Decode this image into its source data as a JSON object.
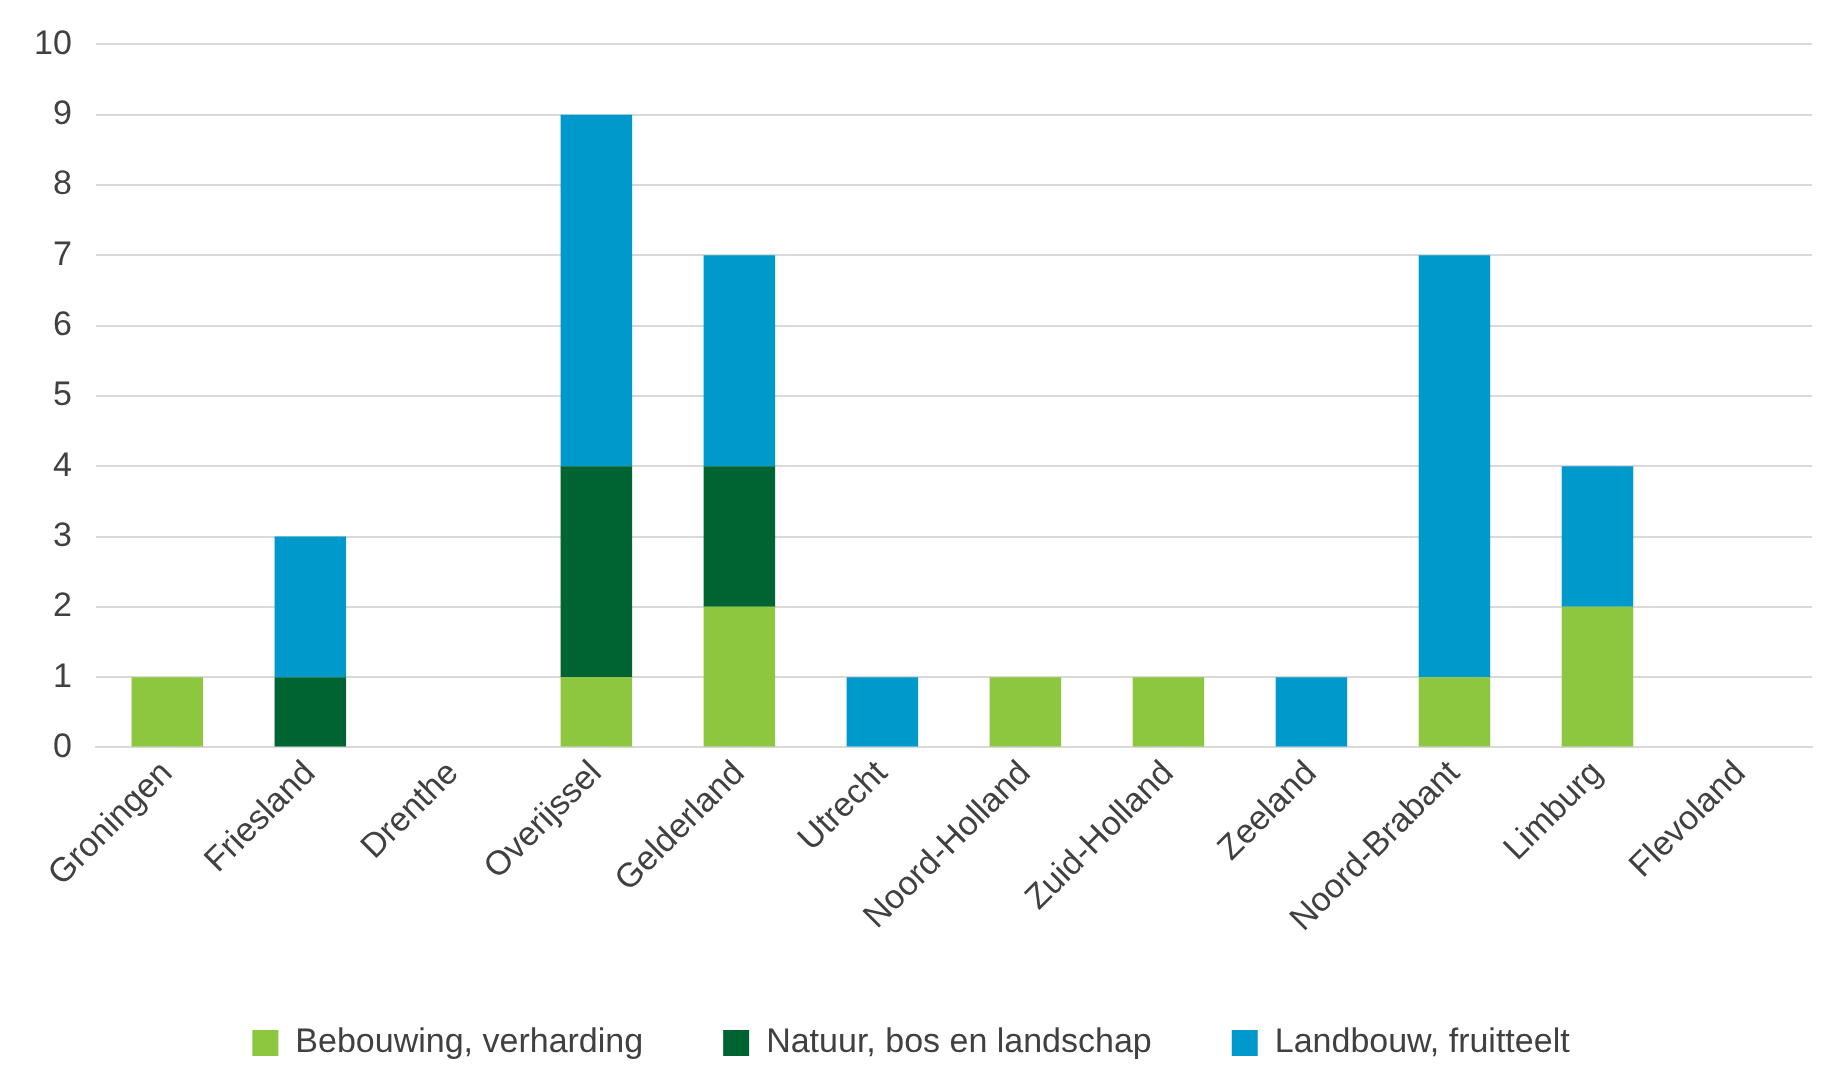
{
  "chart_data": {
    "type": "bar",
    "stacked": true,
    "categories": [
      "Groningen",
      "Friesland",
      "Drenthe",
      "Overijssel",
      "Gelderland",
      "Utrecht",
      "Noord-Holland",
      "Zuid-Holland",
      "Zeeland",
      "Noord-Brabant",
      "Limburg",
      "Flevoland"
    ],
    "series": [
      {
        "name": "Bebouwing, verharding",
        "color": "#8dc63f",
        "values": [
          1,
          0,
          0,
          1,
          2,
          0,
          1,
          1,
          0,
          1,
          2,
          0
        ]
      },
      {
        "name": "Natuur, bos en landschap",
        "color": "#006432",
        "values": [
          0,
          1,
          0,
          3,
          2,
          0,
          0,
          0,
          0,
          0,
          0,
          0
        ]
      },
      {
        "name": "Landbouw, fruitteelt",
        "color": "#0099cc",
        "values": [
          0,
          2,
          0,
          5,
          3,
          1,
          0,
          0,
          1,
          6,
          2,
          0
        ]
      }
    ],
    "ylim": [
      0,
      10
    ],
    "yticks": [
      0,
      1,
      2,
      3,
      4,
      5,
      6,
      7,
      8,
      9,
      10
    ],
    "grid": "y",
    "legend": "bottom"
  }
}
